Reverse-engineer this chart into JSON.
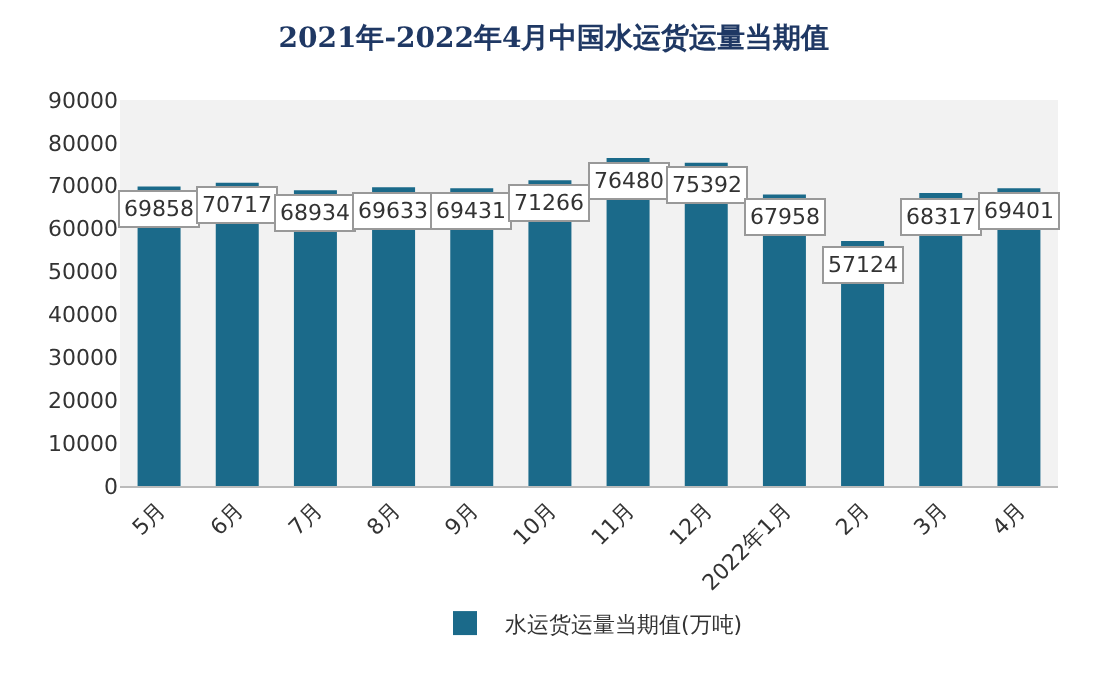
{
  "chart_data": {
    "type": "bar",
    "title": "2021年-2022年4月中国水运货运量当期值",
    "categories": [
      "5月",
      "6月",
      "7月",
      "8月",
      "9月",
      "10月",
      "11月",
      "12月",
      "2022年1月",
      "2月",
      "3月",
      "4月"
    ],
    "series": [
      {
        "name": "水运货运量当期值(万吨)",
        "color": "#1b6a8a",
        "values": [
          69858,
          70717,
          68934,
          69633,
          69431,
          71266,
          76480,
          75392,
          67958,
          57124,
          68317,
          69401
        ]
      }
    ],
    "ylim": [
      0,
      90000
    ],
    "yticks": [
      0,
      10000,
      20000,
      30000,
      40000,
      50000,
      60000,
      70000,
      80000,
      90000
    ],
    "grid": false,
    "legend": "bottom",
    "data_labels": true
  }
}
